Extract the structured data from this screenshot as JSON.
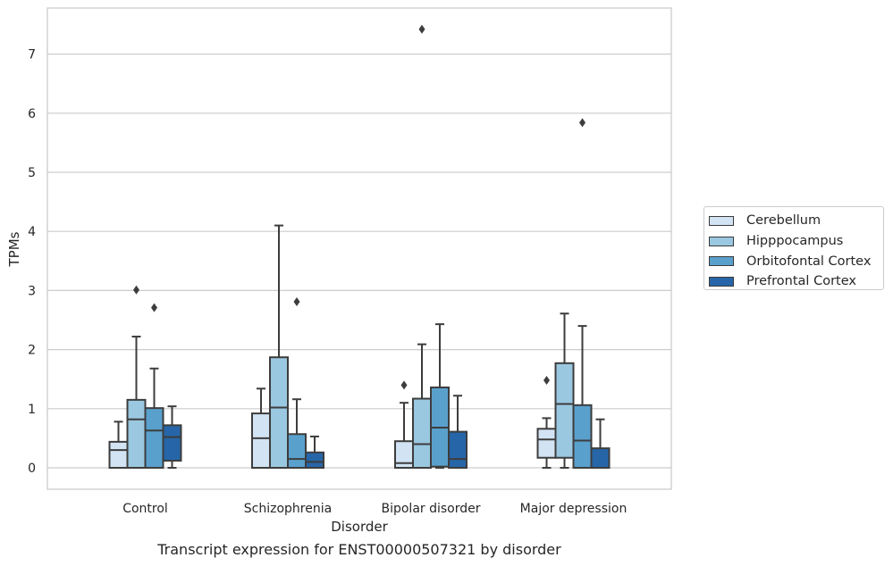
{
  "chart_data": {
    "type": "boxplot",
    "caption": "Transcript expression for ENST00000507321 by disorder",
    "xlabel": "Disorder",
    "ylabel": "TPMs",
    "ylim": [
      -0.36,
      7.8
    ],
    "yticks": [
      0,
      1,
      2,
      3,
      4,
      5,
      6,
      7
    ],
    "grid": "horizontal",
    "legend_position": "right, outside plot",
    "categories": [
      "Control",
      "Schizophrenia",
      "Bipolar disorder",
      "Major depression"
    ],
    "series": [
      {
        "name": "Cerebellum",
        "color": "#d2e3f3",
        "boxes": [
          {
            "whislo": 0,
            "q1": 0,
            "med": 0.3,
            "q3": 0.44,
            "whishi": 0.78,
            "fliers": []
          },
          {
            "whislo": 0,
            "q1": 0,
            "med": 0.5,
            "q3": 0.92,
            "whishi": 1.34,
            "fliers": []
          },
          {
            "whislo": 0,
            "q1": 0,
            "med": 0.08,
            "q3": 0.45,
            "whishi": 1.1,
            "fliers": [
              1.4
            ]
          },
          {
            "whislo": 0,
            "q1": 0.17,
            "med": 0.48,
            "q3": 0.66,
            "whishi": 0.84,
            "fliers": [
              1.48
            ]
          }
        ]
      },
      {
        "name": "Hipppocampus",
        "color": "#9ac8e0",
        "boxes": [
          {
            "whislo": 0,
            "q1": 0,
            "med": 0.82,
            "q3": 1.15,
            "whishi": 2.22,
            "fliers": [
              3.01
            ]
          },
          {
            "whislo": 0,
            "q1": 0,
            "med": 1.02,
            "q3": 1.87,
            "whishi": 4.1,
            "fliers": []
          },
          {
            "whislo": 0,
            "q1": 0,
            "med": 0.4,
            "q3": 1.17,
            "whishi": 2.09,
            "fliers": [
              7.42
            ]
          },
          {
            "whislo": 0,
            "q1": 0.17,
            "med": 1.08,
            "q3": 1.77,
            "whishi": 2.61,
            "fliers": []
          }
        ]
      },
      {
        "name": "Orbitofontal Cortex",
        "color": "#5aa0cd",
        "boxes": [
          {
            "whislo": 0,
            "q1": 0,
            "med": 0.63,
            "q3": 1.01,
            "whishi": 1.68,
            "fliers": [
              2.71
            ]
          },
          {
            "whislo": 0,
            "q1": 0,
            "med": 0.15,
            "q3": 0.57,
            "whishi": 1.16,
            "fliers": [
              2.81
            ]
          },
          {
            "whislo": 0,
            "q1": 0.02,
            "med": 0.68,
            "q3": 1.36,
            "whishi": 2.43,
            "fliers": []
          },
          {
            "whislo": 0,
            "q1": 0,
            "med": 0.46,
            "q3": 1.06,
            "whishi": 2.4,
            "fliers": [
              5.84
            ]
          }
        ]
      },
      {
        "name": "Prefrontal Cortex",
        "color": "#2666a8",
        "boxes": [
          {
            "whislo": 0,
            "q1": 0.12,
            "med": 0.52,
            "q3": 0.72,
            "whishi": 1.04,
            "fliers": []
          },
          {
            "whislo": 0,
            "q1": 0,
            "med": 0.1,
            "q3": 0.26,
            "whishi": 0.53,
            "fliers": []
          },
          {
            "whislo": 0,
            "q1": 0,
            "med": 0.15,
            "q3": 0.61,
            "whishi": 1.22,
            "fliers": []
          },
          {
            "whislo": 0,
            "q1": 0,
            "med": 0,
            "q3": 0.33,
            "whishi": 0.82,
            "fliers": []
          }
        ]
      }
    ]
  }
}
